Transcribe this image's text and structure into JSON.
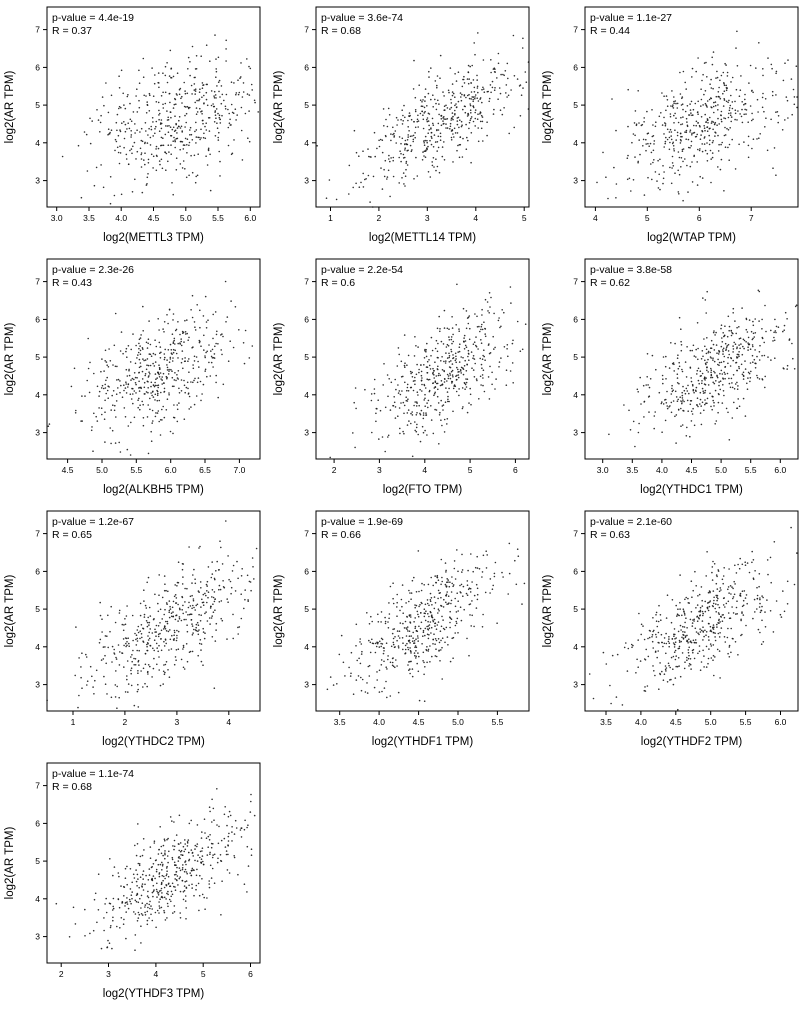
{
  "figure": {
    "background": "#ffffff",
    "point_color": "#1a1a1a",
    "axis_color": "#000000",
    "ylabel": "log2(AR TPM)",
    "ylim": [
      2.3,
      7.6
    ],
    "yticks": [
      "3",
      "4",
      "5",
      "6",
      "7"
    ],
    "grid": "off",
    "legend": "none",
    "description": "Grid of 10 correlation scatter plots of AR expression vs m6A regulator genes; dense black point clouds with positive correlation, p-value and R annotations at top-left of each panel."
  },
  "chart_data": [
    {
      "type": "scatter",
      "gene": "METTL3",
      "xlabel": "log2(METTL3 TPM)",
      "ylabel": "log2(AR TPM)",
      "annotation_p": "p-value = 4.4e-19",
      "annotation_r": "R = 0.37",
      "p_value": "4.4e-19",
      "R": 0.37,
      "xlim": [
        2.85,
        6.15
      ],
      "xticks": [
        "3.0",
        "3.5",
        "4.0",
        "4.5",
        "5.0",
        "5.5",
        "6.0"
      ],
      "x_mean": 4.9,
      "x_sd": 0.62,
      "y_mean": 4.6,
      "y_sd": 0.85,
      "n": 490,
      "seed": 101
    },
    {
      "type": "scatter",
      "gene": "METTL14",
      "xlabel": "log2(METTL14 TPM)",
      "ylabel": "log2(AR TPM)",
      "annotation_p": "p-value = 3.6e-74",
      "annotation_r": "R = 0.68",
      "p_value": "3.6e-74",
      "R": 0.68,
      "xlim": [
        0.7,
        5.1
      ],
      "xticks": [
        "1",
        "2",
        "3",
        "4",
        "5"
      ],
      "x_mean": 3.3,
      "x_sd": 0.85,
      "y_mean": 4.6,
      "y_sd": 0.85,
      "n": 490,
      "seed": 202
    },
    {
      "type": "scatter",
      "gene": "WTAP",
      "xlabel": "log2(WTAP TPM)",
      "ylabel": "log2(AR TPM)",
      "annotation_p": "p-value = 1.1e-27",
      "annotation_r": "R = 0.44",
      "p_value": "1.1e-27",
      "R": 0.44,
      "xlim": [
        3.8,
        7.9
      ],
      "xticks": [
        "4",
        "5",
        "6",
        "7"
      ],
      "x_mean": 6.1,
      "x_sd": 0.75,
      "y_mean": 4.6,
      "y_sd": 0.85,
      "n": 490,
      "seed": 303
    },
    {
      "type": "scatter",
      "gene": "ALKBH5",
      "xlabel": "log2(ALKBH5 TPM)",
      "ylabel": "log2(AR TPM)",
      "annotation_p": "p-value = 2.3e-26",
      "annotation_r": "R = 0.43",
      "p_value": "2.3e-26",
      "R": 0.43,
      "xlim": [
        4.2,
        7.3
      ],
      "xticks": [
        "4.5",
        "5.0",
        "5.5",
        "6.0",
        "6.5",
        "7.0"
      ],
      "x_mean": 5.8,
      "x_sd": 0.55,
      "y_mean": 4.6,
      "y_sd": 0.85,
      "n": 490,
      "seed": 404
    },
    {
      "type": "scatter",
      "gene": "FTO",
      "xlabel": "log2(FTO TPM)",
      "ylabel": "log2(AR TPM)",
      "annotation_p": "p-value = 2.2e-54",
      "annotation_r": "R = 0.6",
      "p_value": "2.2e-54",
      "R": 0.6,
      "xlim": [
        1.6,
        6.3
      ],
      "xticks": [
        "2",
        "3",
        "4",
        "5",
        "6"
      ],
      "x_mean": 4.4,
      "x_sd": 0.8,
      "y_mean": 4.6,
      "y_sd": 0.85,
      "n": 490,
      "seed": 505
    },
    {
      "type": "scatter",
      "gene": "YTHDC1",
      "xlabel": "log2(YTHDC1 TPM)",
      "ylabel": "log2(AR TPM)",
      "annotation_p": "p-value = 3.8e-58",
      "annotation_r": "R = 0.62",
      "p_value": "3.8e-58",
      "R": 0.62,
      "xlim": [
        2.7,
        6.3
      ],
      "xticks": [
        "3.0",
        "3.5",
        "4.0",
        "4.5",
        "5.0",
        "5.5",
        "6.0"
      ],
      "x_mean": 4.9,
      "x_sd": 0.65,
      "y_mean": 4.6,
      "y_sd": 0.85,
      "n": 490,
      "seed": 606
    },
    {
      "type": "scatter",
      "gene": "YTHDC2",
      "xlabel": "log2(YTHDC2 TPM)",
      "ylabel": "log2(AR TPM)",
      "annotation_p": "p-value = 1.2e-67",
      "annotation_r": "R = 0.65",
      "p_value": "1.2e-67",
      "R": 0.65,
      "xlim": [
        0.5,
        4.6
      ],
      "xticks": [
        "1",
        "2",
        "3",
        "4"
      ],
      "x_mean": 2.9,
      "x_sd": 0.75,
      "y_mean": 4.6,
      "y_sd": 0.85,
      "n": 490,
      "seed": 707
    },
    {
      "type": "scatter",
      "gene": "YTHDF1",
      "xlabel": "log2(YTHDF1 TPM)",
      "ylabel": "log2(AR TPM)",
      "annotation_p": "p-value = 1.9e-69",
      "annotation_r": "R = 0.66",
      "p_value": "1.9e-69",
      "R": 0.66,
      "xlim": [
        3.2,
        5.9
      ],
      "xticks": [
        "3.5",
        "4.0",
        "4.5",
        "5.0",
        "5.5"
      ],
      "x_mean": 4.6,
      "x_sd": 0.47,
      "y_mean": 4.6,
      "y_sd": 0.85,
      "n": 490,
      "seed": 808
    },
    {
      "type": "scatter",
      "gene": "YTHDF2",
      "xlabel": "log2(YTHDF2 TPM)",
      "ylabel": "log2(AR TPM)",
      "annotation_p": "p-value = 2.1e-60",
      "annotation_r": "R = 0.63",
      "p_value": "2.1e-60",
      "R": 0.63,
      "xlim": [
        3.2,
        6.25
      ],
      "xticks": [
        "3.5",
        "4.0",
        "4.5",
        "5.0",
        "5.5",
        "6.0"
      ],
      "x_mean": 4.9,
      "x_sd": 0.55,
      "y_mean": 4.6,
      "y_sd": 0.85,
      "n": 490,
      "seed": 909
    },
    {
      "type": "scatter",
      "gene": "YTHDF3",
      "xlabel": "log2(YTHDF3 TPM)",
      "ylabel": "log2(AR TPM)",
      "annotation_p": "p-value = 1.1e-74",
      "annotation_r": "R = 0.68",
      "p_value": "1.1e-74",
      "R": 0.68,
      "xlim": [
        1.7,
        6.2
      ],
      "xticks": [
        "2",
        "3",
        "4",
        "5",
        "6"
      ],
      "x_mean": 4.3,
      "x_sd": 0.8,
      "y_mean": 4.6,
      "y_sd": 0.85,
      "n": 490,
      "seed": 1010
    }
  ]
}
